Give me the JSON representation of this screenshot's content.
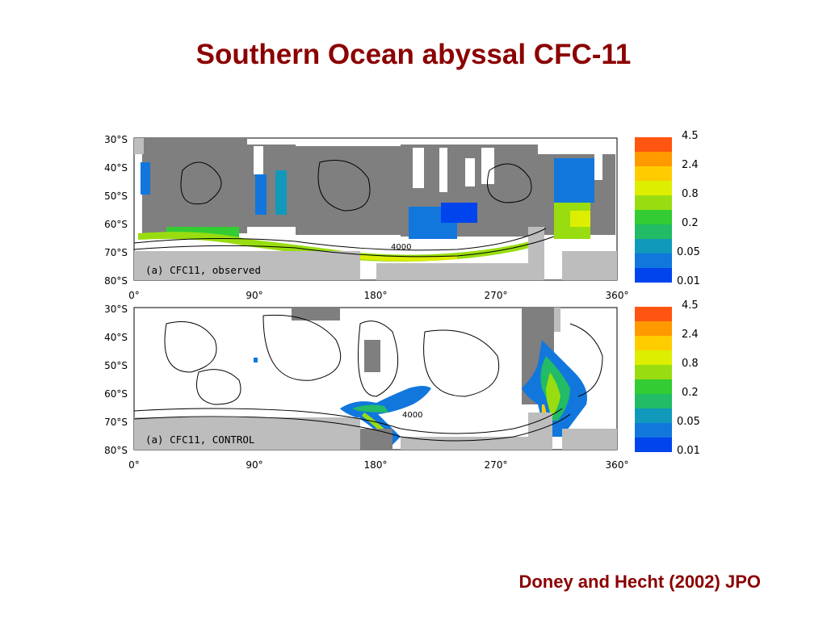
{
  "title": "Southern Ocean abyssal CFC-11",
  "citation": "Doney and Hecht (2002) JPO",
  "colors": {
    "title": "#8b0000",
    "land": "#bdbdbd",
    "bathymetry_shade": "#7f7f7f",
    "scale": [
      "#0044ee",
      "#1177dd",
      "#1199bb",
      "#22bb66",
      "#33cc33",
      "#99dd11",
      "#ddee00",
      "#ffcc00",
      "#ff9900",
      "#ff5511"
    ]
  },
  "panels": [
    {
      "id": "observed",
      "label": "(a) CFC11, observed",
      "contour_label": "4000",
      "x_ticks": [
        "0°",
        "90°",
        "180°",
        "270°",
        "360°"
      ],
      "y_ticks": [
        "30°S",
        "40°S",
        "50°S",
        "60°S",
        "70°S",
        "80°S"
      ]
    },
    {
      "id": "control",
      "label": "(a) CFC11, CONTROL",
      "contour_label": "4000",
      "x_ticks": [
        "0°",
        "90°",
        "180°",
        "270°",
        "360°"
      ],
      "y_ticks": [
        "30°S",
        "40°S",
        "50°S",
        "60°S",
        "70°S",
        "80°S"
      ]
    }
  ],
  "colorbars": [
    {
      "labels": [
        "4.5",
        "2.4",
        "0.8",
        "0.2",
        "0.05",
        "0.01"
      ]
    },
    {
      "labels": [
        "4.5",
        "2.4",
        "0.8",
        "0.2",
        "0.05",
        "0.01"
      ]
    }
  ]
}
